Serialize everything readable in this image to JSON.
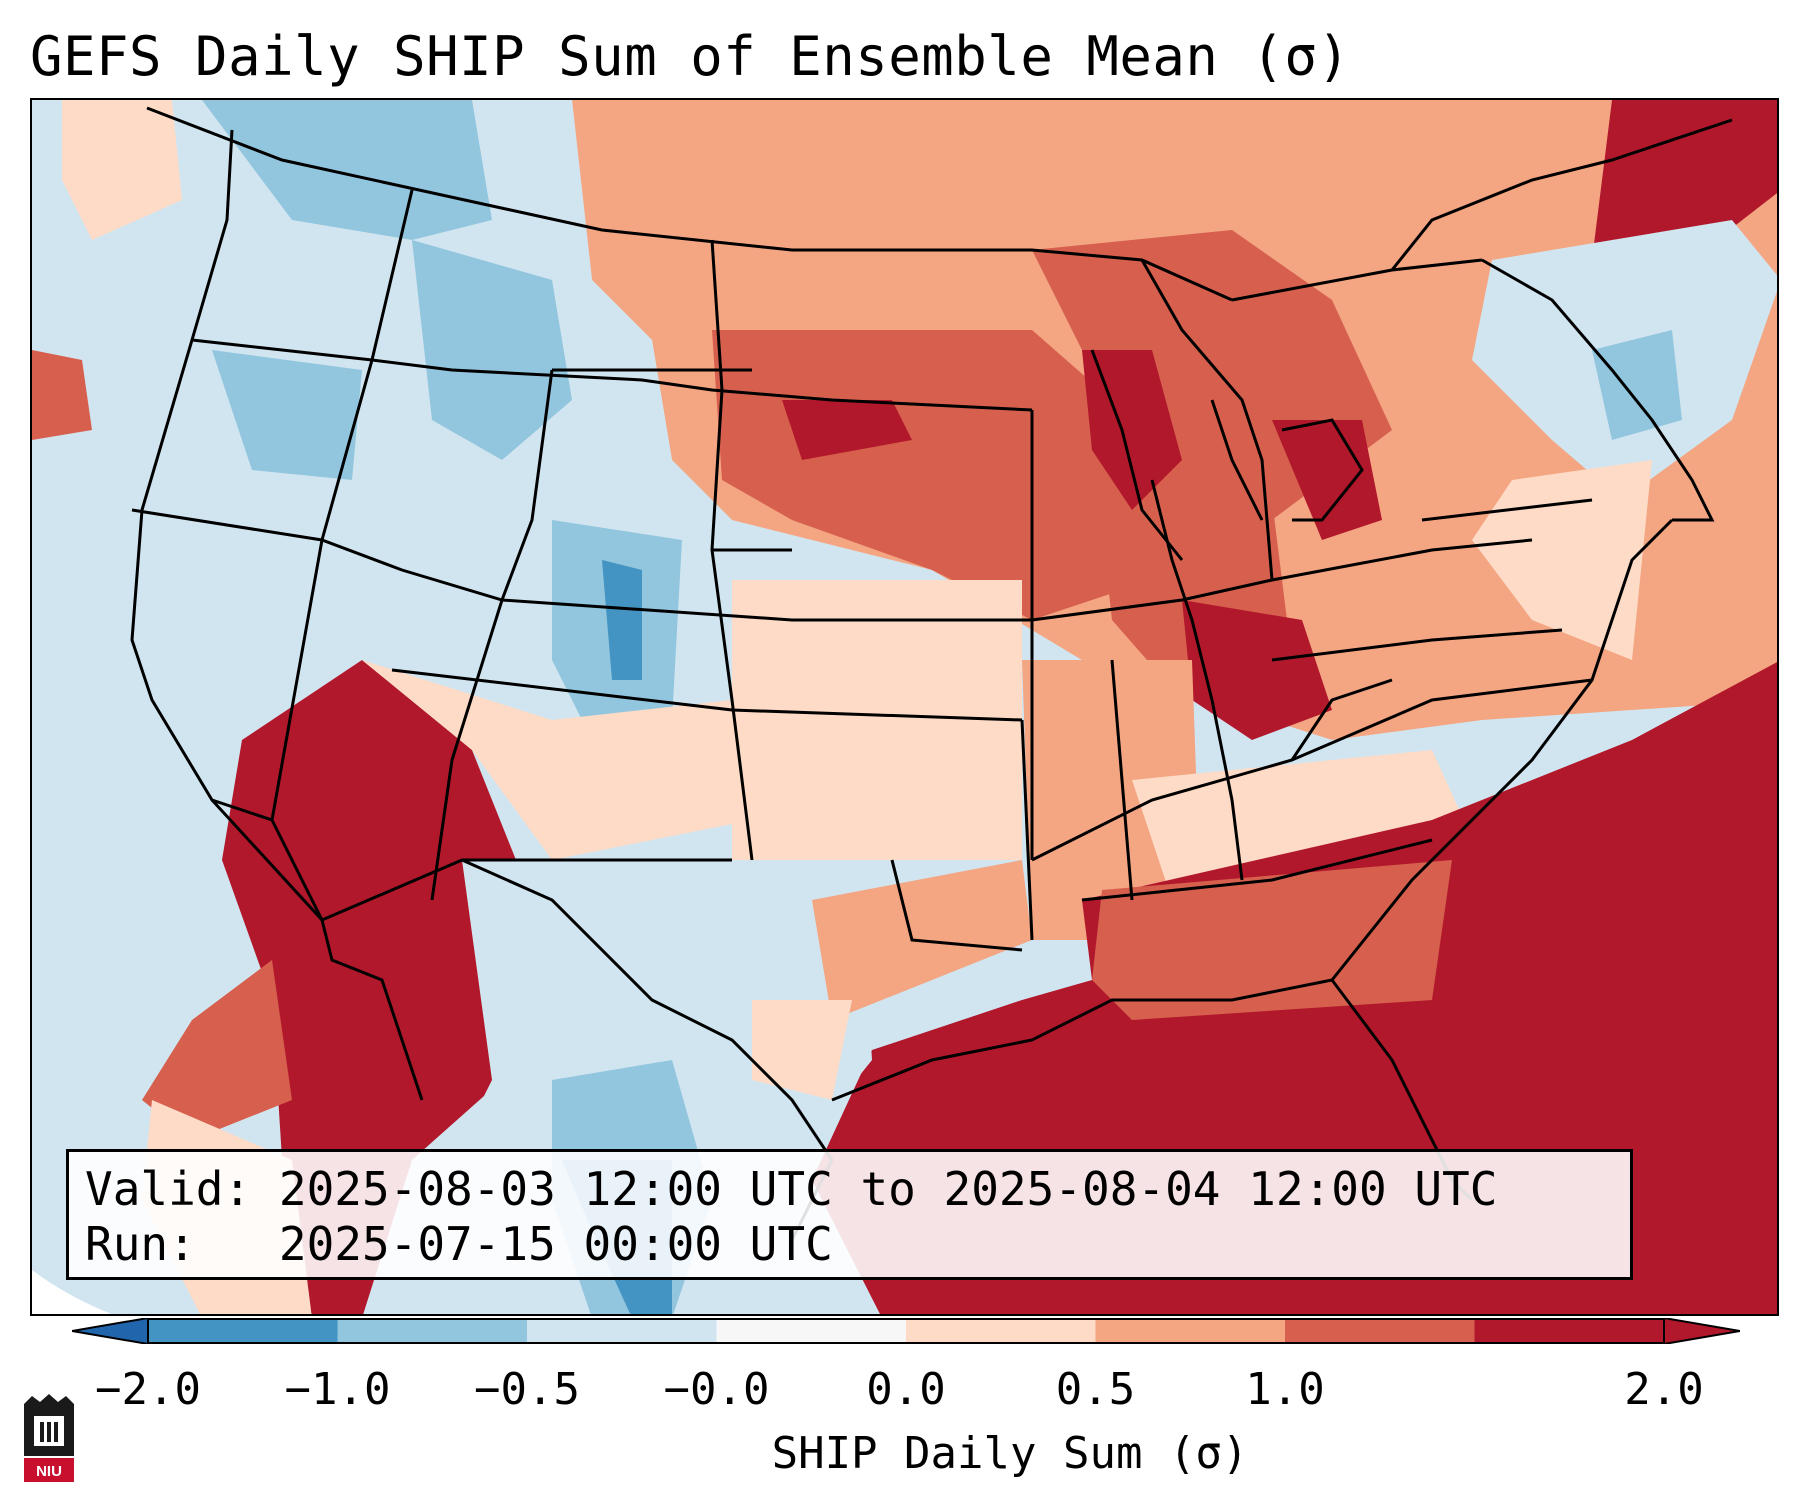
{
  "title": "GEFS Daily SHIP Sum of Ensemble Mean (σ)",
  "info": {
    "valid_label": "Valid:",
    "valid_value": "2025-08-03 12:00 UTC to 2025-08-04 12:00 UTC",
    "run_label": "Run:",
    "run_value": "2025-07-15 00:00 UTC"
  },
  "colorbar": {
    "label": "SHIP Daily Sum (σ)",
    "ticks": [
      "−2.0",
      "−1.0",
      "−0.5",
      "−0.0",
      "0.0",
      "0.5",
      "1.0",
      "2.0"
    ],
    "colors": [
      "#4393c3",
      "#92c5de",
      "#d1e5f0",
      "#f7f7f7",
      "#fddbc7",
      "#f4a582",
      "#d6604d",
      "#b2182b"
    ],
    "extend_low_color": "#2166ac",
    "extend_high_color": "#b2182b"
  },
  "logo": {
    "text": "NIU",
    "color": "#c8102e"
  }
}
